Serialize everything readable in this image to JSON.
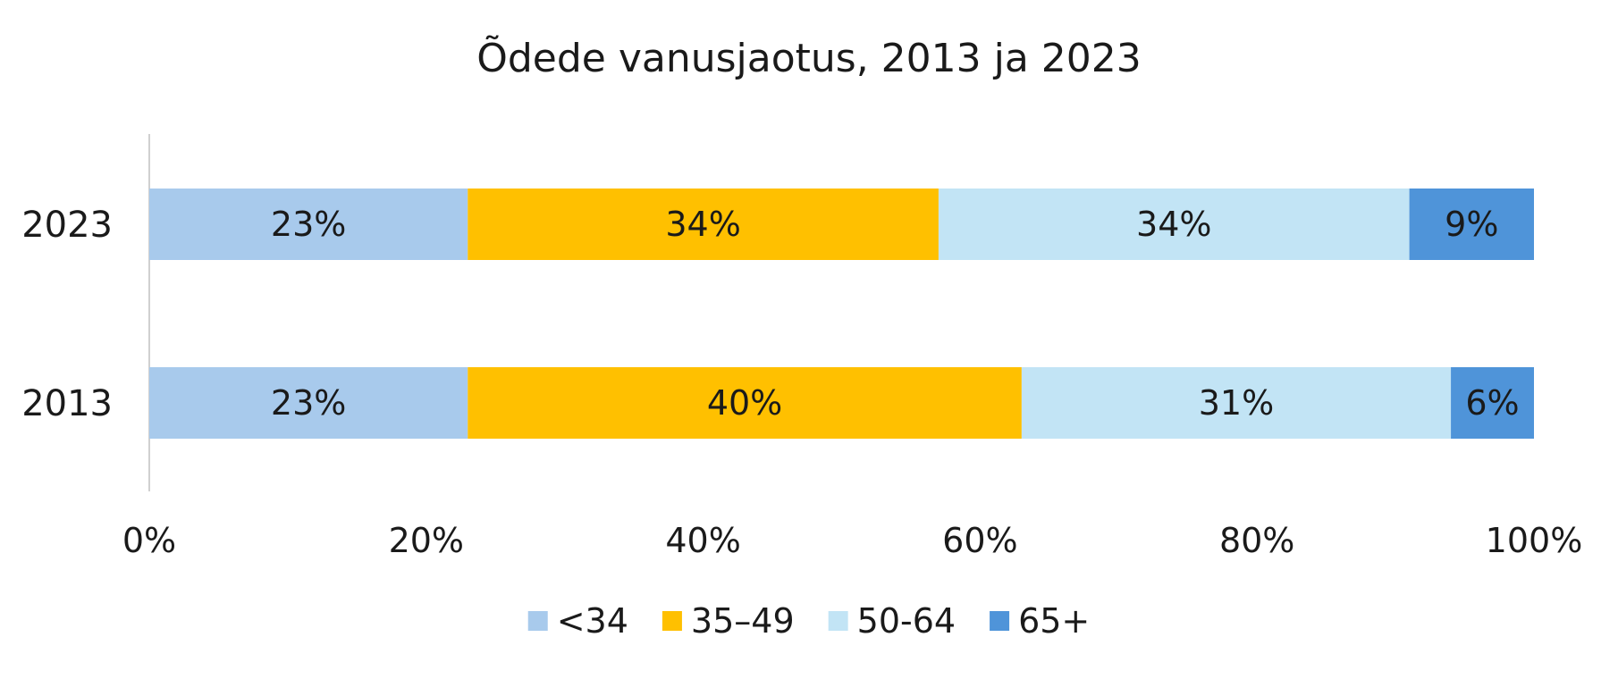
{
  "chart_data": {
    "type": "bar",
    "orientation": "horizontal",
    "stacked": true,
    "title": "Õdede vanusjaotus, 2013 ja 2023",
    "categories": [
      "2023",
      "2013"
    ],
    "series": [
      {
        "name": "<34",
        "values": [
          23,
          23
        ],
        "labels": [
          "23%",
          "23%"
        ],
        "color": "#a8caec"
      },
      {
        "name": "35–49",
        "values": [
          34,
          40
        ],
        "labels": [
          "34%",
          "40%"
        ],
        "color": "#ffc000"
      },
      {
        "name": "50-64",
        "values": [
          34,
          31
        ],
        "labels": [
          "34%",
          "31%"
        ],
        "color": "#c2e4f5"
      },
      {
        "name": "65+",
        "values": [
          9,
          6
        ],
        "labels": [
          "9%",
          "6%"
        ],
        "color": "#4f94d9"
      }
    ],
    "xlim": [
      0,
      100
    ],
    "xticks": [
      0,
      20,
      40,
      60,
      80,
      100
    ],
    "xtick_labels": [
      "0%",
      "20%",
      "40%",
      "60%",
      "80%",
      "100%"
    ],
    "grid": false,
    "legend": "bottom"
  }
}
